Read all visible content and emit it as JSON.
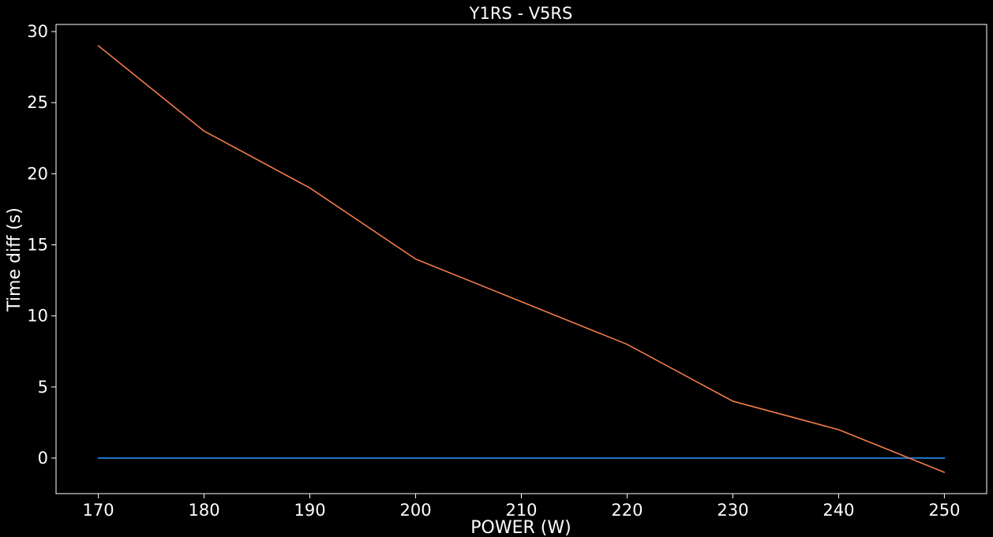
{
  "chart_data": {
    "type": "line",
    "title": "Y1RS - V5RS",
    "xlabel": "POWER (W)",
    "ylabel": "Time diff (s)",
    "x": [
      170,
      180,
      190,
      200,
      210,
      220,
      230,
      240,
      250
    ],
    "series": [
      {
        "values": [
          0,
          0,
          0,
          0,
          0,
          0,
          0,
          0,
          0
        ],
        "color": "#1f77d4"
      },
      {
        "values": [
          29,
          23,
          19,
          14,
          11,
          8,
          4,
          2,
          -1
        ],
        "color": "#f07c4a"
      }
    ],
    "xticks": [
      170,
      180,
      190,
      200,
      210,
      220,
      230,
      240,
      250
    ],
    "yticks": [
      0,
      5,
      10,
      15,
      20,
      25,
      30
    ],
    "xlim": [
      166,
      254
    ],
    "ylim": [
      -2.5,
      30.5
    ],
    "grid": false,
    "background": "#000000",
    "axis_color": "#ffffff"
  }
}
